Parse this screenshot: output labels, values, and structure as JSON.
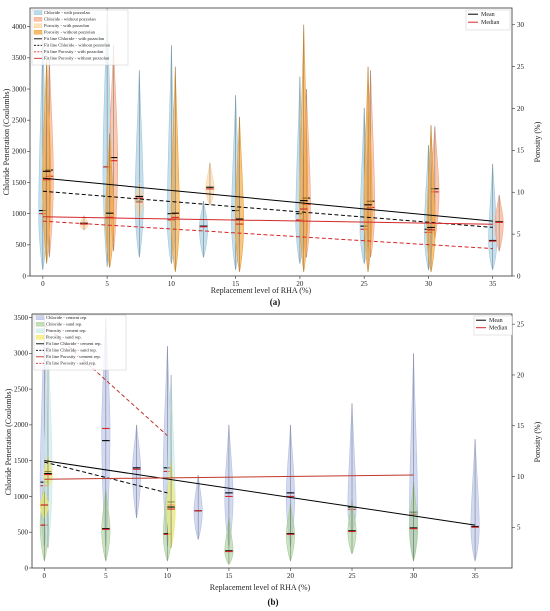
{
  "panels": [
    {
      "label": "(a)",
      "legend_main": [
        "Chloride - with pozzolan",
        "Chloride - without pozzolan",
        "Porosity - with pozzolan",
        "Porosity - without pozzolan",
        "Fit line Chloride - with pozzolan",
        "Fit line Chloride - without pozzolan",
        "Fit line Porosity - with pozzolan",
        "Fit line Porosity - without pozzolan"
      ],
      "legend_stats": [
        "Mean",
        "Median"
      ]
    },
    {
      "label": "(b)",
      "legend_main": [
        "Chloride - cement rep.",
        "Chloride - sand rep.",
        "Porosity - cement rep.",
        "Porosity - sand rep.",
        "Fit line Chloride - cement rep.",
        "Fit line Chloride - sand rep.",
        "Fit line Porosity - cement rep.",
        "Fit line Porosity - sand rep."
      ],
      "legend_stats": [
        "Mean",
        "Median"
      ]
    }
  ],
  "chart_data": [
    {
      "type": "violin",
      "xlabel": "Replacement level of RHA (%)",
      "ylabel": "Chloride Penetration (Coulombs)",
      "y2label": "Porosity (%)",
      "xticks": [
        0,
        5,
        10,
        15,
        20,
        25,
        30,
        35
      ],
      "yticks": [
        0,
        500,
        1000,
        1500,
        2000,
        2500,
        3000,
        3500,
        4000
      ],
      "y2ticks": [
        0,
        5,
        10,
        15,
        20,
        25,
        30
      ],
      "ylim": [
        0,
        4300
      ],
      "y2lim": [
        0,
        32
      ],
      "xlim": [
        -1,
        36.5
      ],
      "colors": {
        "chl_a": "#9ecae1",
        "chl_b": "#f4a582",
        "por_a": "#fdd49e",
        "por_b": "#f0a030",
        "mean": "#000000",
        "median": "#d62728"
      },
      "series": [
        {
          "name": "Chloride - with pozzolan",
          "axis": "left",
          "color": "chl_a",
          "violins": [
            {
              "x": 0,
              "min": 100,
              "max": 3900,
              "mean": 1050,
              "median": 1000
            },
            {
              "x": 5,
              "min": 150,
              "max": 4300,
              "mean": 1750,
              "median": 1750
            },
            {
              "x": 7.5,
              "min": 300,
              "max": 3300,
              "mean": 1200,
              "median": 1180
            },
            {
              "x": 10,
              "min": 200,
              "max": 3700,
              "mean": 1000,
              "median": 900
            },
            {
              "x": 12.5,
              "min": 300,
              "max": 1200,
              "mean": 800,
              "median": 790
            },
            {
              "x": 15,
              "min": 100,
              "max": 2900,
              "mean": 1050,
              "median": 900
            },
            {
              "x": 20,
              "min": 200,
              "max": 3200,
              "mean": 1000,
              "median": 900
            },
            {
              "x": 25,
              "min": 200,
              "max": 2700,
              "mean": 800,
              "median": 750
            },
            {
              "x": 30,
              "min": 100,
              "max": 2100,
              "mean": 750,
              "median": 700
            },
            {
              "x": 35,
              "min": 100,
              "max": 1800,
              "mean": 570,
              "median": 560
            }
          ]
        },
        {
          "name": "Chloride - without pozzolan",
          "axis": "left",
          "color": "chl_b",
          "violins": [
            {
              "x": 0.5,
              "min": 300,
              "max": 3500,
              "mean": 1700,
              "median": 1600
            },
            {
              "x": 5.5,
              "min": 400,
              "max": 3700,
              "mean": 1900,
              "median": 1850
            },
            {
              "x": 20.5,
              "min": 300,
              "max": 3000,
              "mean": 1250,
              "median": 1150
            },
            {
              "x": 25.5,
              "min": 300,
              "max": 3300,
              "mean": 1200,
              "median": 1100
            },
            {
              "x": 30.5,
              "min": 600,
              "max": 2400,
              "mean": 1400,
              "median": 1350
            },
            {
              "x": 35.5,
              "min": 400,
              "max": 1300,
              "mean": 870,
              "median": 860
            }
          ]
        },
        {
          "name": "Porosity - with pozzolan",
          "axis": "right",
          "color": "por_a",
          "violins": [
            {
              "x": 3.2,
              "min": 5.5,
              "max": 7.2,
              "mean": 6.3,
              "median": 6.2
            },
            {
              "x": 7.5,
              "min": 7.0,
              "max": 11.0,
              "mean": 9.5,
              "median": 9.3
            },
            {
              "x": 13,
              "min": 8.5,
              "max": 13.5,
              "mean": 10.6,
              "median": 10.4
            }
          ]
        },
        {
          "name": "Porosity - without pozzolan",
          "axis": "right",
          "color": "por_b",
          "violins": [
            {
              "x": 0.3,
              "min": 1.5,
              "max": 26,
              "mean": 12.5,
              "median": 11.5
            },
            {
              "x": 5.2,
              "min": 1.0,
              "max": 17,
              "mean": 7.5,
              "median": 7.0
            },
            {
              "x": 10.3,
              "min": 0.5,
              "max": 25,
              "mean": 7.5,
              "median": 7.0
            },
            {
              "x": 15.3,
              "min": 0.5,
              "max": 19,
              "mean": 6.8,
              "median": 6.2
            },
            {
              "x": 20.3,
              "min": 0.5,
              "max": 30,
              "mean": 9.0,
              "median": 8.0
            },
            {
              "x": 25.3,
              "min": 0.5,
              "max": 25,
              "mean": 8.5,
              "median": 8.0
            },
            {
              "x": 30.2,
              "min": 0.5,
              "max": 18,
              "mean": 5.8,
              "median": 5.5
            }
          ]
        }
      ],
      "fit_lines": [
        {
          "name": "Fit line Chloride - with pozzolan",
          "axis": "left",
          "style": "solid",
          "color": "#000000",
          "x": [
            0,
            35
          ],
          "y": [
            1570,
            880
          ]
        },
        {
          "name": "Fit line Chloride - without pozzolan",
          "axis": "left",
          "style": "dashed",
          "color": "#000000",
          "x": [
            0,
            35
          ],
          "y": [
            1360,
            780
          ]
        },
        {
          "name": "Fit line Porosity - with pozzolan",
          "axis": "left",
          "style": "dashed",
          "color": "#d62728",
          "x": [
            0,
            35
          ],
          "y": [
            880,
            440
          ]
        },
        {
          "name": "Fit line Porosity - without pozzolan",
          "axis": "left",
          "style": "solid",
          "color": "#d62728",
          "x": [
            0,
            35
          ],
          "y": [
            950,
            830
          ]
        }
      ]
    },
    {
      "type": "violin",
      "xlabel": "Replacement level of RHA (%)",
      "ylabel": "Chloride Penetration (Coulombs)",
      "y2label": "Porosity (%)",
      "xticks": [
        0,
        5,
        10,
        15,
        20,
        25,
        30,
        35
      ],
      "yticks": [
        0,
        500,
        1000,
        1500,
        2000,
        2500,
        3000,
        3500
      ],
      "y2ticks": [
        5,
        10,
        15,
        20,
        25
      ],
      "ylim": [
        0,
        3550
      ],
      "y2lim": [
        1,
        26
      ],
      "xlim": [
        -1,
        38
      ],
      "colors": {
        "chl_a": "#b4bfe6",
        "chl_b": "#a9cf9a",
        "por_a": "#c8eae8",
        "por_b": "#f3ea6a",
        "mean": "#000000",
        "median": "#d62728"
      },
      "series": [
        {
          "name": "Chloride - cement rep.",
          "axis": "left",
          "color": "chl_a",
          "violins": [
            {
              "x": 0,
              "min": 300,
              "max": 3500,
              "mean": 1200,
              "median": 1150
            },
            {
              "x": 5,
              "min": 300,
              "max": 3500,
              "mean": 1780,
              "median": 1950
            },
            {
              "x": 7.5,
              "min": 700,
              "max": 2000,
              "mean": 1400,
              "median": 1380
            },
            {
              "x": 10,
              "min": 300,
              "max": 3100,
              "mean": 1400,
              "median": 1350
            },
            {
              "x": 12.5,
              "min": 400,
              "max": 1300,
              "mean": 800,
              "median": 800
            },
            {
              "x": 15,
              "min": 300,
              "max": 2000,
              "mean": 1050,
              "median": 1000
            },
            {
              "x": 20,
              "min": 300,
              "max": 2000,
              "mean": 1050,
              "median": 1000
            },
            {
              "x": 25,
              "min": 500,
              "max": 2300,
              "mean": 850,
              "median": 820
            },
            {
              "x": 30,
              "min": 100,
              "max": 3000,
              "mean": 780,
              "median": 750
            },
            {
              "x": 35,
              "min": 100,
              "max": 1800,
              "mean": 580,
              "median": 570
            }
          ]
        },
        {
          "name": "Chloride - sand rep.",
          "axis": "left",
          "color": "chl_b",
          "violins": [
            {
              "x": 0,
              "min": 100,
              "max": 1300,
              "mean": 600,
              "median": 600
            },
            {
              "x": 5,
              "min": 100,
              "max": 1100,
              "mean": 550,
              "median": 540
            },
            {
              "x": 10,
              "min": 100,
              "max": 1200,
              "mean": 480,
              "median": 470
            },
            {
              "x": 15,
              "min": 50,
              "max": 700,
              "mean": 240,
              "median": 230
            },
            {
              "x": 20,
              "min": 100,
              "max": 900,
              "mean": 480,
              "median": 470
            },
            {
              "x": 25,
              "min": 200,
              "max": 950,
              "mean": 520,
              "median": 510
            },
            {
              "x": 30,
              "min": 100,
              "max": 1200,
              "mean": 560,
              "median": 550
            }
          ]
        },
        {
          "name": "Porosity - cement rep.",
          "axis": "right",
          "color": "por_a",
          "violins": [
            {
              "x": 0.3,
              "min": 3,
              "max": 24,
              "mean": 10.5,
              "median": 10.2
            },
            {
              "x": 10.3,
              "min": 3,
              "max": 20,
              "mean": 7.5,
              "median": 7.2
            }
          ]
        },
        {
          "name": "Porosity - sand rep.",
          "axis": "right",
          "color": "por_b",
          "violins": [
            {
              "x": 0.3,
              "min": 9,
              "max": 12,
              "mean": 10.3,
              "median": 10.2
            },
            {
              "x": 0,
              "min": 6,
              "max": 8.5,
              "mean": 7.2,
              "median": 7.2
            },
            {
              "x": 10.3,
              "min": 3,
              "max": 11.5,
              "mean": 7.0,
              "median": 6.8
            }
          ]
        }
      ],
      "fit_lines": [
        {
          "name": "Fit line Chloride - cement rep.",
          "axis": "left",
          "style": "solid",
          "color": "#000000",
          "x": [
            0,
            35
          ],
          "y": [
            1500,
            600
          ]
        },
        {
          "name": "Fit line Chloride - sand rep.",
          "axis": "left",
          "style": "dashed",
          "color": "#000000",
          "x": [
            0,
            10
          ],
          "y": [
            1480,
            1050
          ]
        },
        {
          "name": "Fit line Porosity - cement rep.",
          "axis": "left",
          "style": "solid",
          "color": "#c0392b",
          "x": [
            0,
            30
          ],
          "y": [
            1240,
            1300
          ]
        },
        {
          "name": "Fit line Porosity - sand rep.",
          "axis": "left",
          "style": "dashed",
          "color": "#c0392b",
          "x": [
            0,
            10
          ],
          "y": [
            3400,
            1850
          ]
        }
      ]
    }
  ]
}
